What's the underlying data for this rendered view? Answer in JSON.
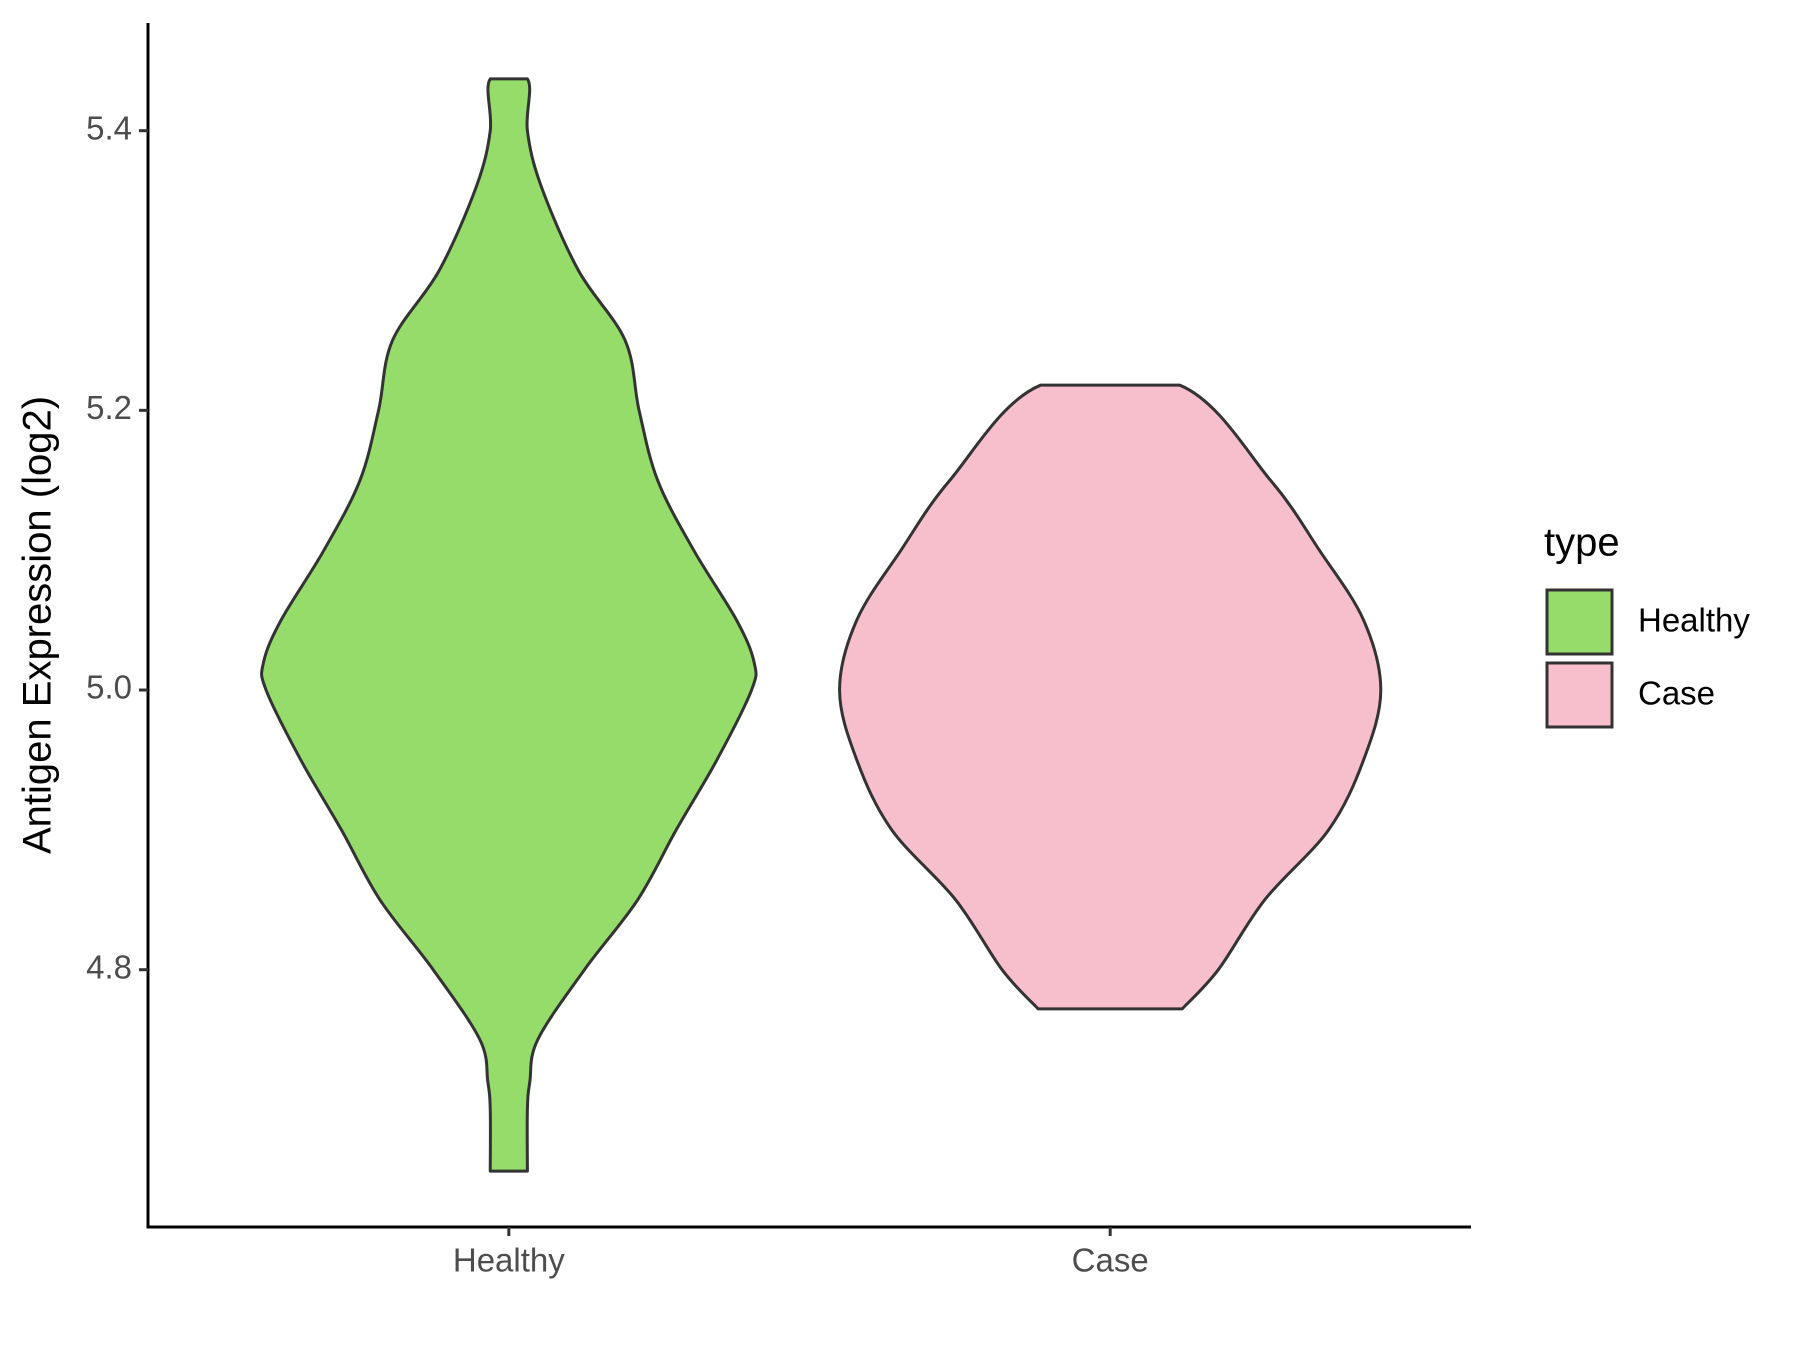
{
  "chart_data": {
    "type": "violin",
    "y_label": "Antigen Expression (log2)",
    "categories": [
      "Healthy",
      "Case"
    ],
    "series": [
      {
        "name": "Healthy",
        "color": "#95dc6a",
        "y": [
          4.656,
          4.7,
          4.72,
          4.75,
          4.8,
          4.85,
          4.9,
          4.95,
          5.0,
          5.02,
          5.05,
          5.1,
          5.15,
          5.2,
          5.25,
          5.3,
          5.36,
          5.4,
          5.437
        ],
        "density": [
          0.068,
          0.068,
          0.077,
          0.106,
          0.277,
          0.472,
          0.613,
          0.762,
          0.889,
          0.898,
          0.834,
          0.677,
          0.545,
          0.477,
          0.426,
          0.255,
          0.119,
          0.068,
          0.068
        ]
      },
      {
        "name": "Case",
        "color": "#f7bfcb",
        "y": [
          4.772,
          4.8,
          4.85,
          4.9,
          4.95,
          5.0,
          5.05,
          5.1,
          5.15,
          5.218
        ],
        "density": [
          0.264,
          0.396,
          0.566,
          0.8,
          0.928,
          0.991,
          0.928,
          0.766,
          0.587,
          0.255
        ]
      }
    ],
    "ylim": [
      4.616,
      5.477
    ],
    "yticks": [
      4.8,
      {
        "value": 5.0,
        "label": "5.0"
      },
      5.2,
      5.4
    ],
    "legend_title": "type",
    "legend_position": "right"
  }
}
